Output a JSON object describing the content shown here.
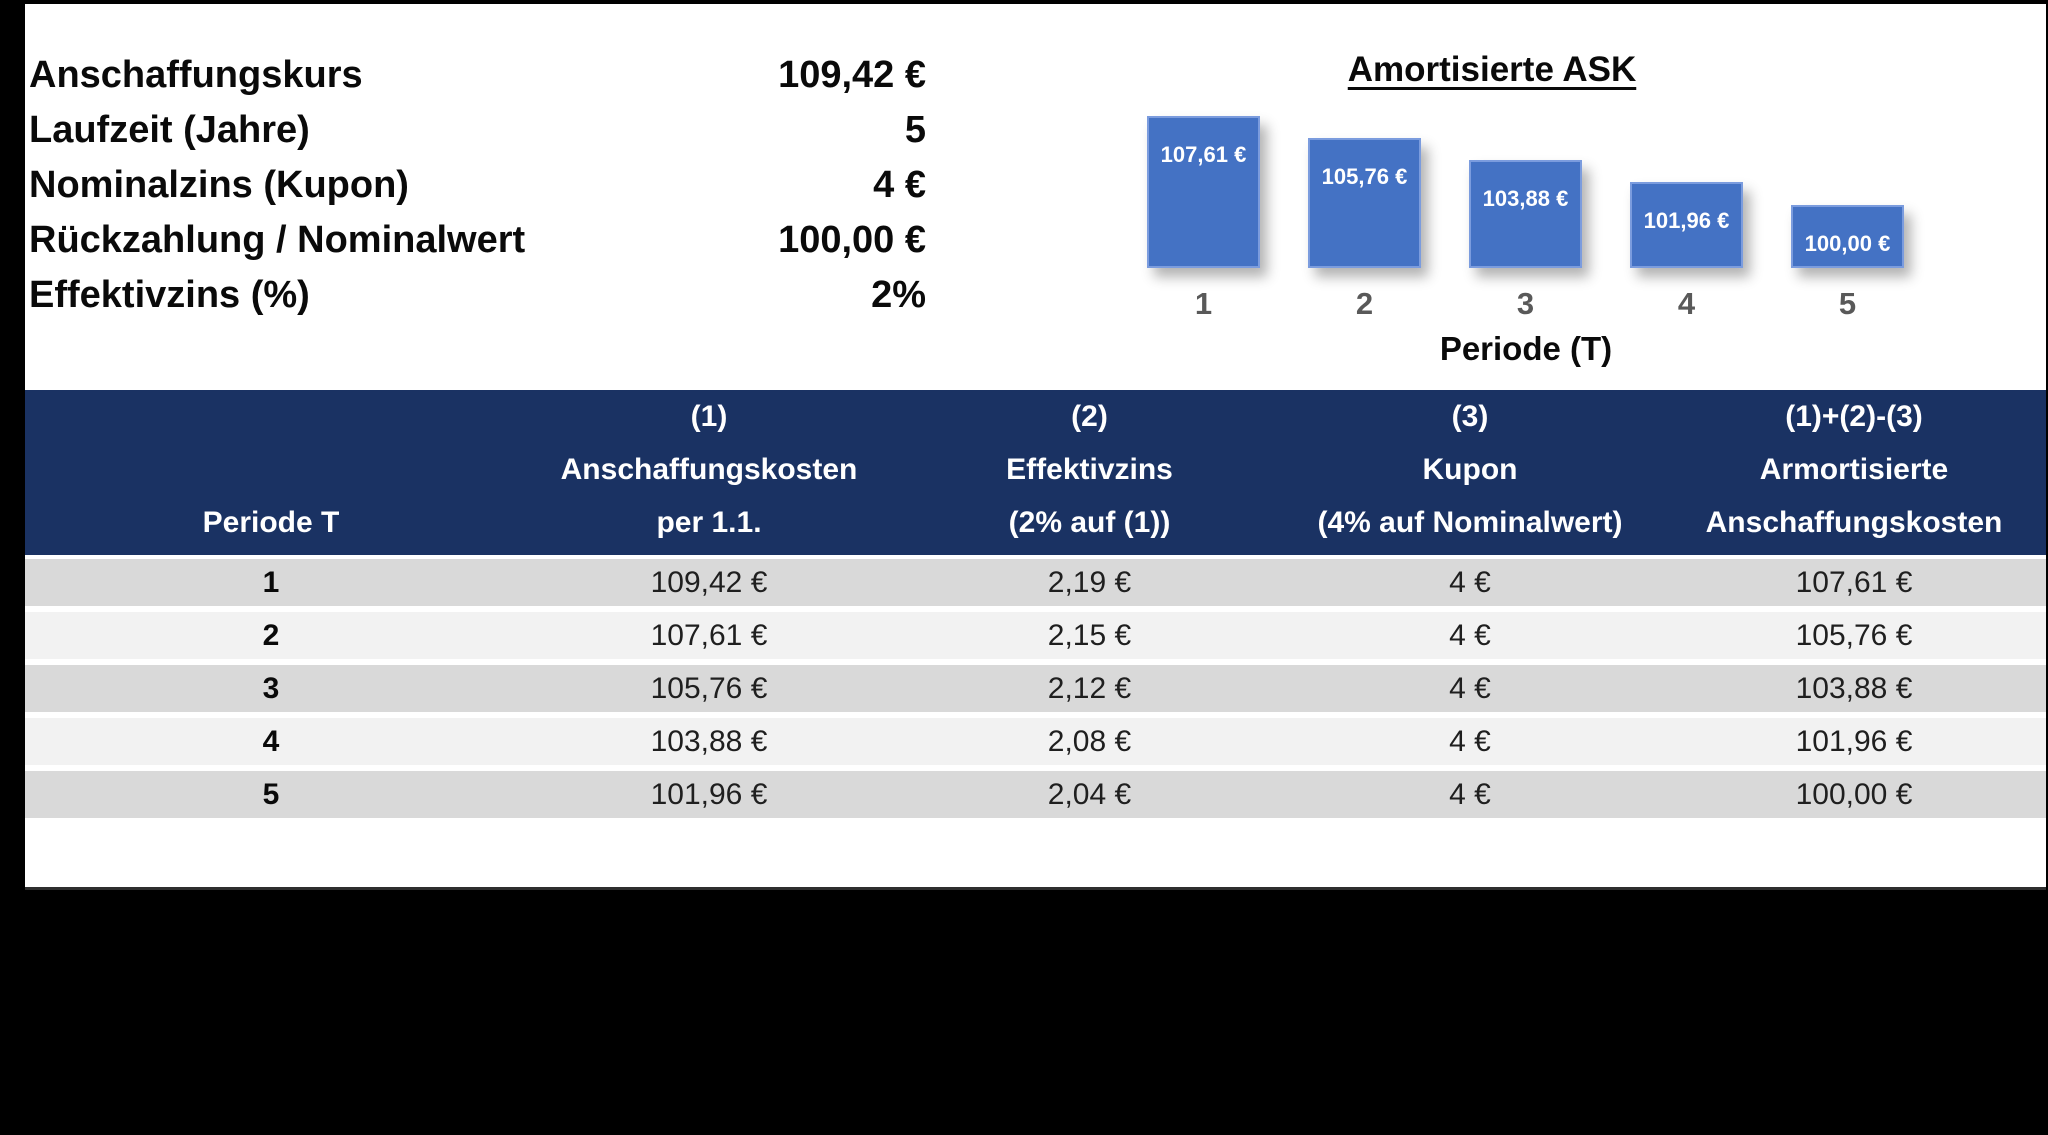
{
  "params": {
    "rows": [
      {
        "label": "Anschaffungskurs",
        "value": "109,42 €"
      },
      {
        "label": "Laufzeit (Jahre)",
        "value": "5"
      },
      {
        "label": "Nominalzins (Kupon)",
        "value": "4 €"
      },
      {
        "label": "Rückzahlung / Nominalwert",
        "value": "100,00 €"
      },
      {
        "label": "Effektivzins (%)",
        "value": "2%"
      }
    ]
  },
  "chart_data": {
    "type": "bar",
    "title": "Amortisierte ASK",
    "xlabel": "Periode (T)",
    "ylabel": "",
    "categories": [
      "1",
      "2",
      "3",
      "4",
      "5"
    ],
    "values": [
      107.61,
      105.76,
      103.88,
      101.96,
      100.0
    ],
    "bar_labels": [
      "107,61 €",
      "105,76 €",
      "103,88 €",
      "101,96 €",
      "100,00 €"
    ],
    "ylim": [
      94.67,
      107.61
    ],
    "grid": false,
    "legend_position": "none",
    "data_labels": "inside-end"
  },
  "table": {
    "header": {
      "col1": {
        "line1": "",
        "line2": "",
        "line3": "Periode T"
      },
      "col2": {
        "line1": "(1)",
        "line2": "Anschaffungskosten",
        "line3": "per 1.1."
      },
      "col3": {
        "line1": "(2)",
        "line2": "Effektivzins",
        "line3": "(2% auf (1))"
      },
      "col4": {
        "line1": "(3)",
        "line2": "Kupon",
        "line3": "(4% auf Nominalwert)"
      },
      "col5": {
        "line1": "(1)+(2)-(3)",
        "line2": "Armortisierte",
        "line3": "Anschaffungskosten"
      }
    },
    "rows": [
      {
        "period": "1",
        "anschaffungskosten": "109,42 €",
        "effektivzins": "2,19 €",
        "kupon": "4 €",
        "amortisiert": "107,61 €"
      },
      {
        "period": "2",
        "anschaffungskosten": "107,61 €",
        "effektivzins": "2,15 €",
        "kupon": "4 €",
        "amortisiert": "105,76 €"
      },
      {
        "period": "3",
        "anschaffungskosten": "105,76 €",
        "effektivzins": "2,12 €",
        "kupon": "4 €",
        "amortisiert": "103,88 €"
      },
      {
        "period": "4",
        "anschaffungskosten": "103,88 €",
        "effektivzins": "2,08 €",
        "kupon": "4 €",
        "amortisiert": "101,96 €"
      },
      {
        "period": "5",
        "anschaffungskosten": "101,96 €",
        "effektivzins": "2,04 €",
        "kupon": "4 €",
        "amortisiert": "100,00 €"
      }
    ]
  },
  "colors": {
    "bar": "#4472C4",
    "header_bg": "#1A3263",
    "row_odd": "#D9D9D9",
    "row_even": "#F2F2F2",
    "tick": "#595959"
  }
}
